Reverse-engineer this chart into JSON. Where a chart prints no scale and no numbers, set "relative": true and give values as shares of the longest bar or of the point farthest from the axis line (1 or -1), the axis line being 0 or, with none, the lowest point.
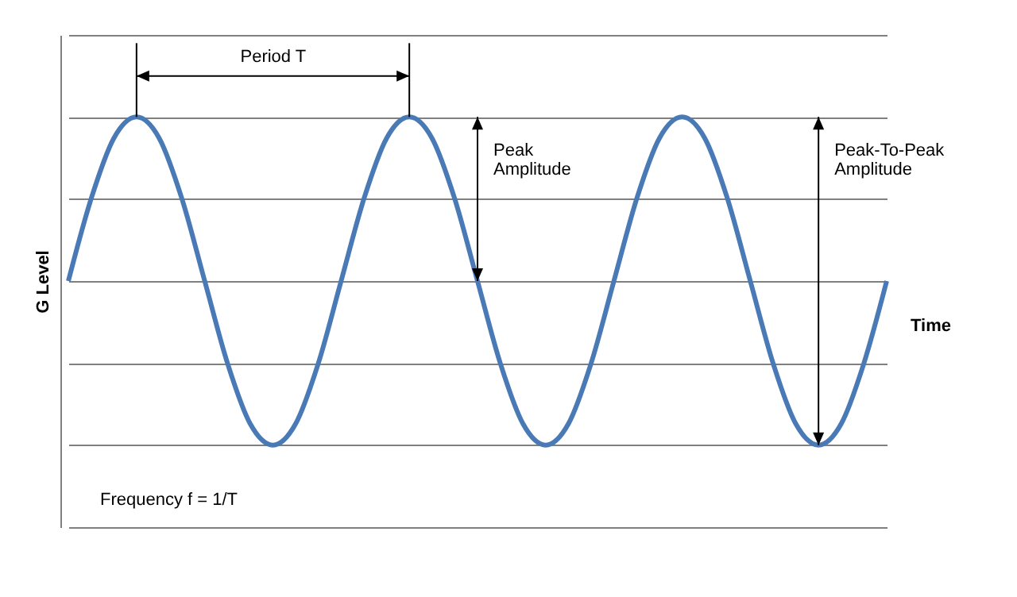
{
  "chart_data": {
    "type": "line",
    "relative": true,
    "xlabel": "Time",
    "ylabel": "G Level",
    "grid": "y",
    "line_style": "solid",
    "marker": "none",
    "categories": [
      null,
      null,
      null,
      null,
      null,
      null,
      null,
      null,
      null,
      null,
      null,
      null,
      null,
      null,
      null,
      null,
      null,
      null,
      null,
      null,
      null,
      null,
      null,
      null,
      null,
      null,
      null,
      null,
      null,
      null,
      null,
      null,
      null,
      null,
      null,
      null,
      null
    ],
    "series": [
      {
        "color": "#4a7ab5",
        "values": [
          0,
          0.5,
          0.87,
          1,
          0.87,
          0.5,
          0,
          -0.5,
          -0.87,
          -1,
          -0.87,
          -0.5,
          0,
          0.5,
          0.87,
          1,
          0.87,
          0.5,
          0,
          -0.5,
          -0.87,
          -1,
          -0.87,
          -0.5,
          0,
          0.5,
          0.87,
          1,
          0.87,
          0.5,
          0,
          -0.5,
          -0.87,
          -1,
          -0.87,
          -0.5,
          0
        ]
      }
    ],
    "annotations": [
      "Period T",
      "Peak Amplitude",
      "Peak-To-Peak Amplitude",
      "Frequency f = 1/T"
    ]
  }
}
